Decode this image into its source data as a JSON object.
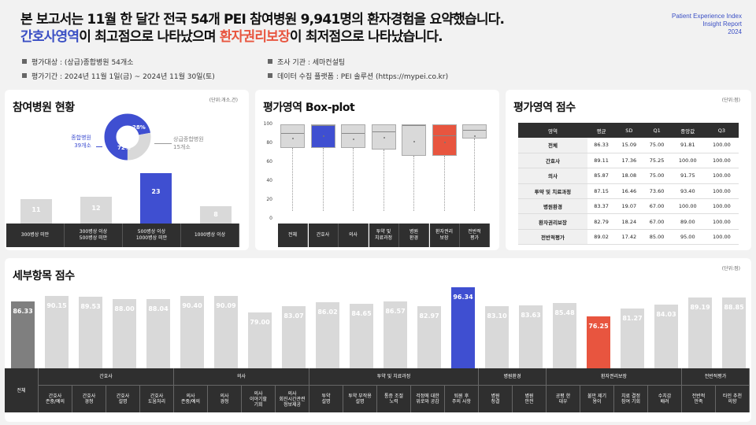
{
  "header": {
    "line1": "본 보고서는 11월 한 달간 전국 54개 PEI 참여병원 9,941명의 환자경험을 요약했습니다.",
    "line2_hl1": "간호사영역",
    "line2_mid": "이 최고점으로 나타났으며 ",
    "line2_hl2": "환자권리보장",
    "line2_end": "이 최저점으로 나타났습니다.",
    "brand": [
      "Patient Experience Index",
      "Insight Report",
      "2024"
    ]
  },
  "meta": {
    "target": "평가대상 : (상급)종합병원 54개소",
    "period": "평가기간 : 2024년 11월 1일(금) ~ 2024년 11월 30일(토)",
    "agency": "조사 기관 : 세마컨설팅",
    "platform": "데이터 수집 플랫폼 : PEI 솔루션 (https://mypei.co.kr)"
  },
  "colors": {
    "blue": "#3f4fd1",
    "red": "#e8553f",
    "gray": "#d9d9d9",
    "dark": "#2f2f2f",
    "total": "#7f7f7f"
  },
  "chart_data": [
    {
      "type": "bar",
      "title": "참여병원 현황",
      "unit": "(단위:개소,건)",
      "categories": [
        "300병상 미만",
        "300병상 이상\n500병상 미만",
        "500병상 이상\n1000병상 미만",
        "1000병상 이상"
      ],
      "values": [
        11,
        12,
        23,
        8
      ],
      "highlight": 2,
      "ylim": [
        0,
        25
      ],
      "donut": {
        "type": "pie",
        "labels": [
          "종합병원\n39개소",
          "상급종합병원\n15개소"
        ],
        "values": [
          72,
          28
        ],
        "value_labels": [
          "72%",
          "28%"
        ]
      }
    },
    {
      "type": "box",
      "title": "평가영역 Box-plot",
      "y_ticks": [
        "100",
        "80",
        "60",
        "40",
        "20",
        "0"
      ],
      "ylim": [
        0,
        100
      ],
      "categories": [
        "전체",
        "간호사",
        "의사",
        "투약 및\n치료과정",
        "병원\n환경",
        "환자권리\n보장",
        "전반적\n평가"
      ],
      "q1": [
        75.0,
        75.25,
        75.0,
        73.6,
        67.0,
        67.0,
        85.0
      ],
      "median": [
        91.81,
        100.0,
        91.75,
        93.4,
        100.0,
        89.0,
        95.0
      ],
      "q3": [
        100,
        100,
        100,
        100,
        100,
        100,
        100
      ],
      "mean": [
        86.33,
        89.11,
        85.87,
        87.15,
        83.37,
        82.79,
        89.02
      ]
    },
    {
      "type": "table",
      "title": "평가영역 점수",
      "unit": "(단위:점)",
      "columns": [
        "영역",
        "평균",
        "SD",
        "Q1",
        "중앙값",
        "Q3"
      ],
      "rows": [
        [
          "전체",
          "86.33",
          "15.09",
          "75.00",
          "91.81",
          "100.00"
        ],
        [
          "간호사",
          "89.11",
          "17.36",
          "75.25",
          "100.00",
          "100.00"
        ],
        [
          "의사",
          "85.87",
          "18.08",
          "75.00",
          "91.75",
          "100.00"
        ],
        [
          "투약 및 치료과정",
          "87.15",
          "16.46",
          "73.60",
          "93.40",
          "100.00"
        ],
        [
          "병원환경",
          "83.37",
          "19.07",
          "67.00",
          "100.00",
          "100.00"
        ],
        [
          "환자권리보장",
          "82.79",
          "18.24",
          "67.00",
          "89.00",
          "100.00"
        ],
        [
          "전반적평가",
          "89.02",
          "17.42",
          "85.00",
          "95.00",
          "100.00"
        ]
      ]
    },
    {
      "type": "bar",
      "title": "세부항목 점수",
      "unit": "(단위:점)",
      "ylim": [
        0,
        100
      ],
      "values": [
        86.33,
        90.15,
        89.53,
        88.0,
        88.04,
        90.4,
        90.09,
        79.0,
        83.07,
        86.02,
        84.65,
        86.57,
        82.97,
        96.34,
        83.1,
        83.63,
        85.48,
        76.25,
        81.27,
        84.03,
        89.19,
        88.85
      ],
      "labels": [
        "86.33",
        "90.15",
        "89.53",
        "88.00",
        "88.04",
        "90.40",
        "90.09",
        "79.00",
        "83.07",
        "86.02",
        "84.65",
        "86.57",
        "82.97",
        "96.34",
        "83.10",
        "83.63",
        "85.48",
        "76.25",
        "81.27",
        "84.03",
        "89.19",
        "88.85"
      ],
      "highlight_max": 13,
      "highlight_min": 17,
      "total_label": "전체",
      "groups": [
        {
          "name": "간호사",
          "items": [
            "간호사\n존중/예의",
            "간호사\n경청",
            "간호사\n설명",
            "간호사\n도움처리"
          ]
        },
        {
          "name": "의사",
          "items": [
            "의사\n존중/예의",
            "의사\n경청",
            "의사\n이야기할\n기회",
            "의사\n회진시간관련\n정보제공"
          ]
        },
        {
          "name": "투약 및 치료과정",
          "items": [
            "투약\n설명",
            "투약 부작용\n설명",
            "통증 조절\n노력",
            "걱정에 대한\n위로와 공감",
            "퇴원 후\n주의 사항"
          ]
        },
        {
          "name": "병원환경",
          "items": [
            "병원\n청결",
            "병원\n안전"
          ]
        },
        {
          "name": "환자권리보장",
          "items": [
            "공평 한\n대우",
            "불만 제기\n용이",
            "치료 결정\n참여 기회",
            "수치감\n배려"
          ]
        },
        {
          "name": "전반적평가",
          "items": [
            "전반적\n만족",
            "타인 추천\n의향"
          ]
        }
      ]
    }
  ]
}
